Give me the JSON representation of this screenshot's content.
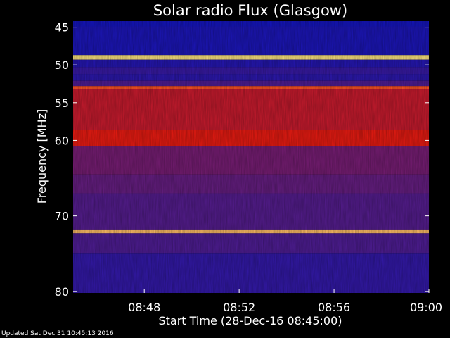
{
  "chart_data": {
    "type": "heatmap",
    "title": "Solar radio Flux (Glasgow)",
    "xlabel": "Start Time (28-Dec-16 08:45:00)",
    "ylabel": "Frequency [MHz]",
    "x_ticks": [
      "08:48",
      "08:52",
      "08:56",
      "09:00"
    ],
    "x_tick_minutes": [
      48,
      52,
      56,
      60
    ],
    "xlim_minutes": [
      45,
      60
    ],
    "y_ticks": [
      45,
      50,
      55,
      60,
      70,
      80
    ],
    "ylim_mhz": [
      44.2,
      80.2
    ],
    "intensity_bands": [
      {
        "from": 44.2,
        "to": 44.9,
        "level": 0.05
      },
      {
        "from": 44.9,
        "to": 48.7,
        "level": 0.08
      },
      {
        "from": 48.7,
        "to": 49.3,
        "level": 1.0
      },
      {
        "from": 49.3,
        "to": 50.3,
        "level": 0.12
      },
      {
        "from": 50.3,
        "to": 51.2,
        "level": 0.2
      },
      {
        "from": 51.2,
        "to": 52.1,
        "level": 0.15
      },
      {
        "from": 52.1,
        "to": 52.8,
        "level": 0.3
      },
      {
        "from": 52.8,
        "to": 53.2,
        "level": 0.82
      },
      {
        "from": 53.2,
        "to": 58.6,
        "level": 0.62
      },
      {
        "from": 58.6,
        "to": 60.8,
        "level": 0.7
      },
      {
        "from": 60.8,
        "to": 64.5,
        "level": 0.42
      },
      {
        "from": 64.5,
        "to": 67.0,
        "level": 0.38
      },
      {
        "from": 67.0,
        "to": 71.8,
        "level": 0.33
      },
      {
        "from": 71.8,
        "to": 72.3,
        "level": 0.95
      },
      {
        "from": 72.3,
        "to": 75.0,
        "level": 0.3
      },
      {
        "from": 75.0,
        "to": 80.2,
        "level": 0.18
      }
    ],
    "colors": {
      "background": "#000000",
      "low": "#0a14c8",
      "mid": "#5a1e8c",
      "high": "#ff1a00",
      "peak": "#ffe680"
    }
  },
  "footer": {
    "updated": "Updated Sat Dec 31 10:45:13 2016"
  }
}
